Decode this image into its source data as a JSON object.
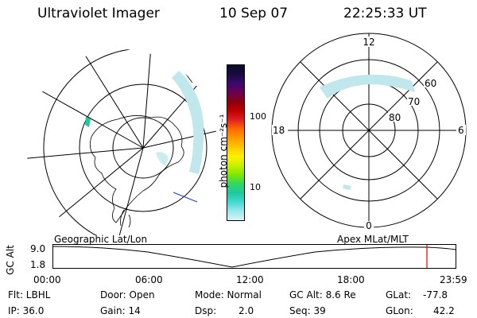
{
  "header": {
    "instrument": "Ultraviolet Imager",
    "date": "10 Sep 07",
    "time": "22:25:33 UT"
  },
  "colorbar": {
    "unit_label": "photon cm⁻²s⁻¹",
    "ticks": [
      "100",
      "10"
    ],
    "colors": [
      "#0a0a2a",
      "#1a0a40",
      "#3a0a70",
      "#6a0050",
      "#8a0010",
      "#c00000",
      "#e02020",
      "#ff6a00",
      "#ff9a00",
      "#ffc800",
      "#fff000",
      "#c8f000",
      "#80e800",
      "#30d860",
      "#20c8a0",
      "#40d8d0",
      "#9ce8ec",
      "#d8f4f6"
    ]
  },
  "left_map": {
    "caption": "Geographic Lat/Lon"
  },
  "right_map": {
    "caption": "Apex MLat/MLT",
    "mlt_labels": {
      "top": "12",
      "bottom": "0",
      "left": "18",
      "right": "6"
    },
    "lat_labels": [
      "60",
      "70",
      "80"
    ]
  },
  "timeline": {
    "axis_label": "GC Alt",
    "y_ticks": [
      "9.0",
      "1.8"
    ],
    "x_ticks": [
      "00:00",
      "06:00",
      "12:00",
      "18:00",
      "23:59"
    ],
    "marker_color": "#e00000"
  },
  "info": {
    "filter": "Flt: LBHL",
    "ip": "IP: 36.0",
    "door": "Door: Open",
    "gain": "Gain: 14",
    "mode": "Mode: Normal",
    "dsp_label": "Dsp:",
    "dsp_value": "2.0",
    "gc_alt": "GC Alt: 8.6 Re",
    "seq": "Seq: 39",
    "glat_label": "GLat:",
    "glat_value": "-77.8",
    "glon_label": "GLon:",
    "glon_value": "42.2"
  }
}
